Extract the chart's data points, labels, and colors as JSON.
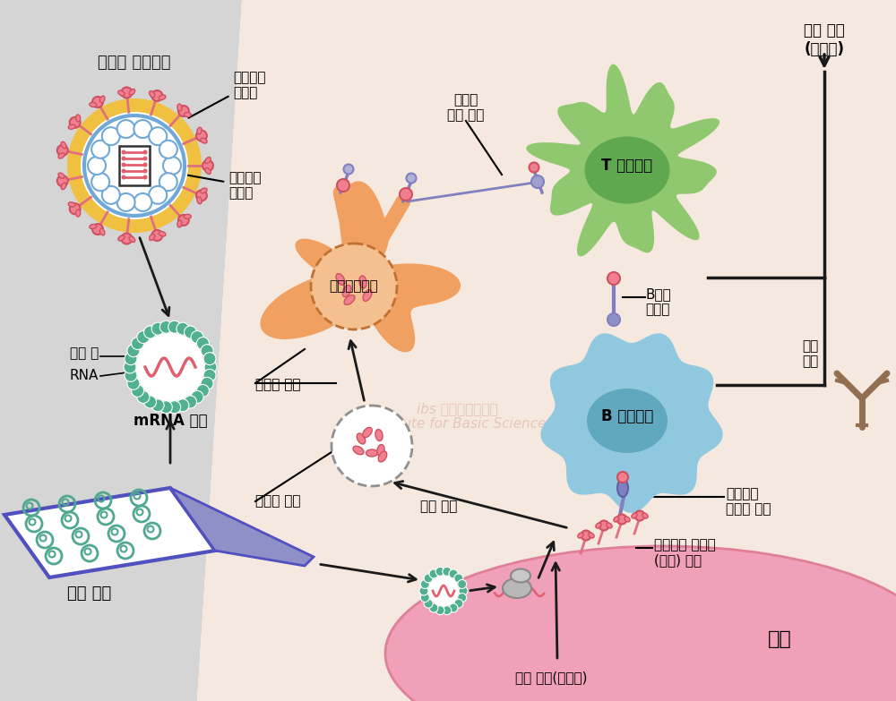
{
  "bg_left_color": "#d5d5d5",
  "bg_right_color": "#f5e8de",
  "virus_yellow": "#f0c040",
  "virus_white": "#ffffff",
  "virus_blue_ring": "#70a8d8",
  "spike_pink": "#f08090",
  "spike_dark": "#d05060",
  "spike_stem": "#e07080",
  "gene_box_fill": "#ffffff",
  "gene_box_edge": "#404040",
  "gene_line_color": "#d06070",
  "lipid_green": "#50b090",
  "rna_pink": "#e06070",
  "muscle_outline": "#5050c0",
  "muscle_fill": "#ffffff",
  "muscle_dot": "#50a890",
  "muscle_needle": "#9090c8",
  "apc_body": "#f0a060",
  "apc_nucleus_fill": "#f5c090",
  "apc_nucleus_edge": "#c07030",
  "t_cell_body": "#90c870",
  "t_cell_nucleus": "#60a850",
  "b_cell_body": "#90c8e0",
  "b_cell_nucleus": "#60a8c0",
  "cell_pink": "#f0a0b8",
  "cell_edge": "#e08098",
  "frag_circle_edge": "#909090",
  "connector_purple": "#8080c0",
  "antibody_brown": "#907050",
  "arrow_black": "#1a1a1a",
  "text_black": "#1a1a1a",
  "watermark_color": "#e0b8a8",
  "labels": {
    "corona": "코로나 바이러스",
    "spike_protein": "스파이크\n단백질",
    "spike_gene": "스파이크\n유전자",
    "lipid_membrane": "지질 막",
    "rna": "RNA",
    "mrna_vaccine": "mRNA 백신",
    "muscle_injection": "근육 주사",
    "protein_fragment_upper": "단백질 조각",
    "protein_fragment_lower": "단백질 조각",
    "protein_fragment_recog": "단백질\n조각 인지",
    "apc": "항원제시세포",
    "t_cell": "T 면역세포",
    "b_cell": "B 면역세포",
    "b_cell_activation": "B세포\n활성화",
    "antibody": "항체\n생성",
    "immune_adaptive": "면역 반응\n(후천성)",
    "immune_innate": "면역 반응(선천성)",
    "cell_death": "세포 사멸",
    "spike_antigen": "스파이크 단백질\n(항원) 생성",
    "spike_protein_recog": "스파이크\n단백질 인지",
    "cell": "세포"
  }
}
